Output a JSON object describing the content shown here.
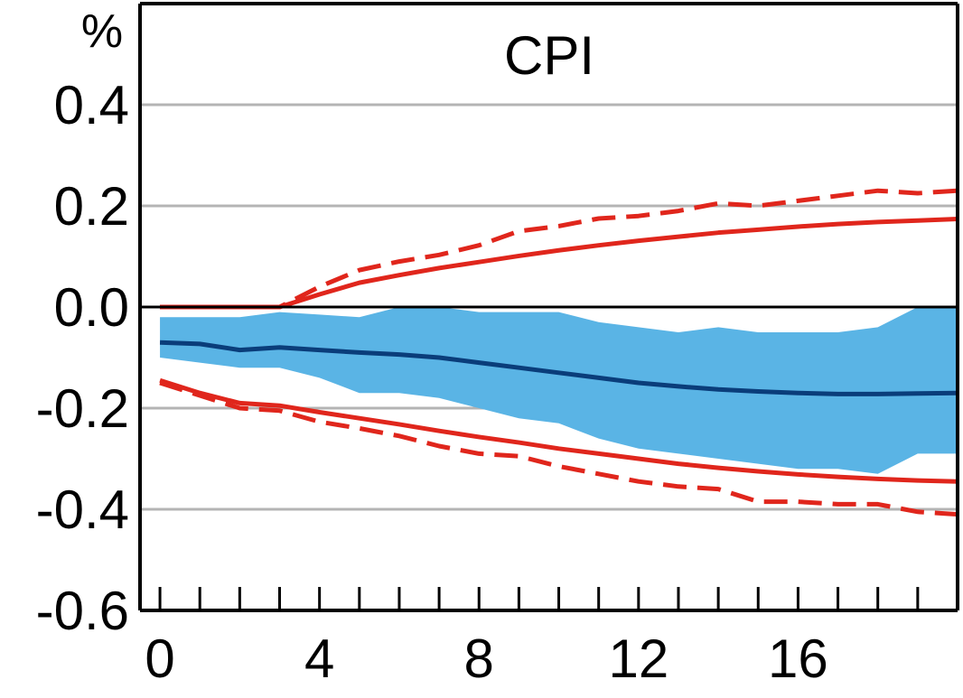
{
  "chart_data": {
    "type": "line",
    "title": "CPI",
    "unit_label": "%",
    "xlabel": "",
    "ylabel": "",
    "xlim": [
      -0.5,
      20.0
    ],
    "ylim": [
      -0.6,
      0.6
    ],
    "x_ticks": [
      0,
      4,
      8,
      12,
      16
    ],
    "x_tick_labels": [
      "0",
      "4",
      "8",
      "12",
      "16"
    ],
    "x_minor_ticks": [
      1,
      2,
      3,
      5,
      6,
      7,
      9,
      10,
      11,
      13,
      14,
      15,
      17,
      18,
      19
    ],
    "y_ticks": [
      0.4,
      0.2,
      0.0,
      -0.2,
      -0.4,
      -0.6
    ],
    "y_tick_labels": [
      "0.4",
      "0.2",
      "0.0",
      "-0.2",
      "-0.4",
      "-0.6"
    ],
    "grid": true,
    "colors": {
      "band": "#5ab4e5",
      "median": "#0a3d7a",
      "bounds": "#e0261c",
      "grid": "#b4b4b4",
      "axis": "#000000"
    },
    "x": [
      0,
      1,
      2,
      3,
      4,
      5,
      6,
      7,
      8,
      9,
      10,
      11,
      12,
      13,
      14,
      15,
      16,
      17,
      18,
      19,
      20
    ],
    "series": [
      {
        "role": "band",
        "upper": [
          -0.02,
          -0.02,
          -0.02,
          -0.01,
          -0.015,
          -0.02,
          0.0,
          0.0,
          -0.01,
          -0.01,
          -0.01,
          -0.03,
          -0.04,
          -0.05,
          -0.04,
          -0.05,
          -0.05,
          -0.05,
          -0.04,
          0.0,
          0.0
        ],
        "lower": [
          -0.1,
          -0.11,
          -0.12,
          -0.12,
          -0.14,
          -0.17,
          -0.17,
          -0.18,
          -0.2,
          -0.22,
          -0.23,
          -0.26,
          -0.28,
          -0.29,
          -0.3,
          -0.31,
          -0.32,
          -0.32,
          -0.33,
          -0.29,
          -0.29
        ]
      },
      {
        "role": "median",
        "values": [
          -0.07,
          -0.073,
          -0.085,
          -0.08,
          -0.085,
          -0.09,
          -0.094,
          -0.1,
          -0.11,
          -0.12,
          -0.13,
          -0.14,
          -0.15,
          -0.157,
          -0.163,
          -0.167,
          -0.17,
          -0.172,
          -0.172,
          -0.171,
          -0.17
        ]
      },
      {
        "role": "upper-solid",
        "values": [
          0.0,
          0.0,
          0.0,
          0.0,
          0.025,
          0.048,
          0.063,
          0.077,
          0.089,
          0.101,
          0.112,
          0.122,
          0.131,
          0.139,
          0.147,
          0.153,
          0.159,
          0.164,
          0.168,
          0.171,
          0.174
        ]
      },
      {
        "role": "upper-dashed",
        "values": [
          0.0,
          0.0,
          0.0,
          0.0,
          0.04,
          0.073,
          0.09,
          0.103,
          0.122,
          0.15,
          0.16,
          0.175,
          0.18,
          0.19,
          0.205,
          0.2,
          0.21,
          0.22,
          0.23,
          0.225,
          0.23
        ]
      },
      {
        "role": "lower-solid",
        "values": [
          -0.145,
          -0.17,
          -0.19,
          -0.195,
          -0.208,
          -0.22,
          -0.232,
          -0.245,
          -0.257,
          -0.268,
          -0.28,
          -0.29,
          -0.3,
          -0.31,
          -0.318,
          -0.325,
          -0.331,
          -0.336,
          -0.34,
          -0.343,
          -0.345
        ]
      },
      {
        "role": "lower-dashed",
        "values": [
          -0.15,
          -0.175,
          -0.2,
          -0.205,
          -0.227,
          -0.24,
          -0.255,
          -0.275,
          -0.29,
          -0.295,
          -0.315,
          -0.33,
          -0.345,
          -0.355,
          -0.36,
          -0.385,
          -0.385,
          -0.39,
          -0.39,
          -0.405,
          -0.41
        ]
      }
    ]
  }
}
